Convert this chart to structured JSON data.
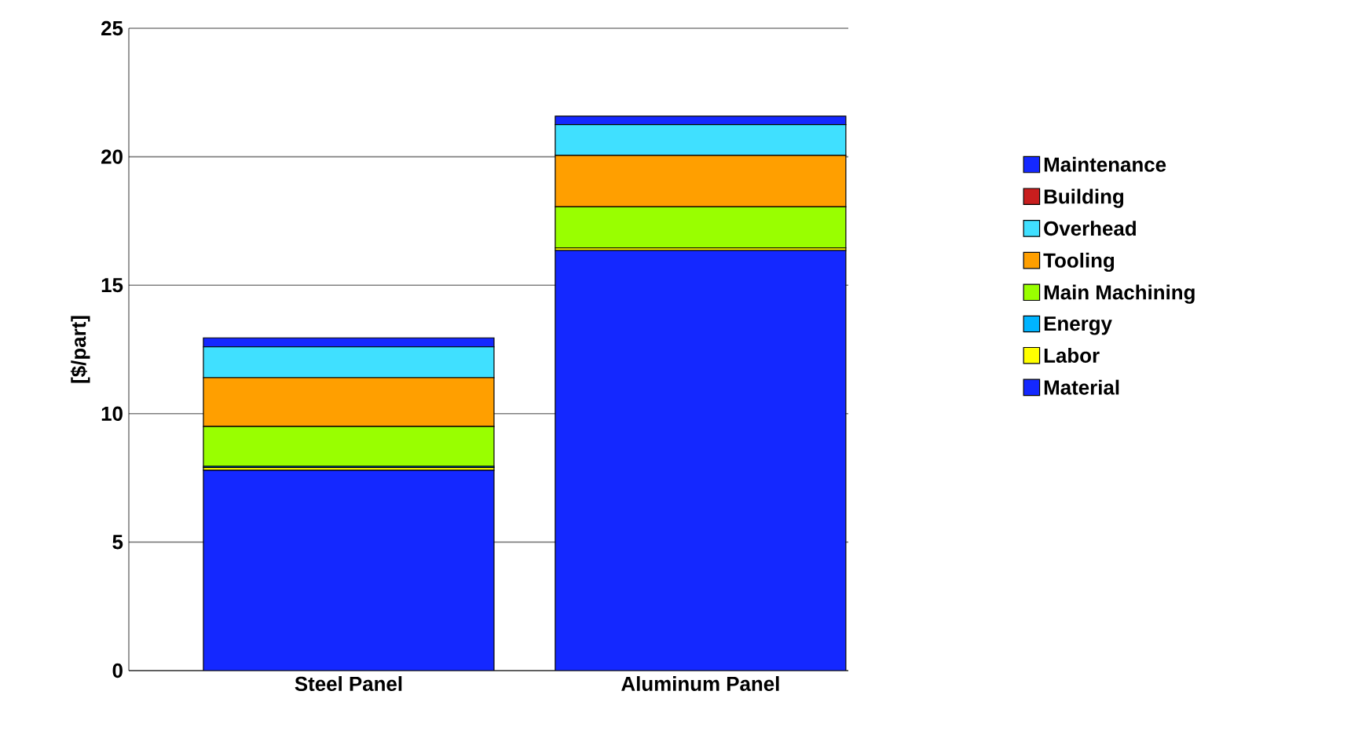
{
  "chart_data": {
    "type": "bar",
    "stacked": true,
    "ylabel": "[$/part]",
    "categories": [
      "Steel Panel",
      "Aluminum Panel"
    ],
    "ylim": [
      0,
      25
    ],
    "yticks": [
      0,
      5,
      10,
      15,
      20,
      25
    ],
    "grid": "y",
    "legend": "right",
    "series": [
      {
        "name": "Material",
        "color": "#1428ff",
        "values": [
          7.8,
          16.35
        ]
      },
      {
        "name": "Labor",
        "color": "#ffff00",
        "values": [
          0.1,
          0.1
        ]
      },
      {
        "name": "Energy",
        "color": "#00b4ff",
        "values": [
          0.05,
          null
        ]
      },
      {
        "name": "Main Machining",
        "color": "#99ff00",
        "values": [
          1.55,
          1.6
        ]
      },
      {
        "name": "Tooling",
        "color": "#ff9f00",
        "values": [
          1.9,
          2.0
        ]
      },
      {
        "name": "Overhead",
        "color": "#40e0ff",
        "values": [
          1.2,
          1.2
        ]
      },
      {
        "name": "Building",
        "color": "#c81e1e",
        "values": [
          null,
          null
        ]
      },
      {
        "name": "Maintenance",
        "color": "#1428ff",
        "values": [
          0.35,
          0.33
        ]
      }
    ]
  }
}
